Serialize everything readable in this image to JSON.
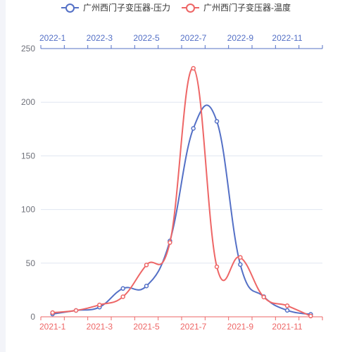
{
  "legend": [
    {
      "label": "广州西门子变压器-压力",
      "color": "#5470c6"
    },
    {
      "label": "广州西门子变压器-温度",
      "color": "#ee6666"
    }
  ],
  "chart_data": {
    "type": "line",
    "smooth": true,
    "grid": true,
    "legend_position": "top-center",
    "ylim": [
      0,
      250
    ],
    "y_ticks": [
      0,
      50,
      100,
      150,
      200,
      250
    ],
    "x_bottom": {
      "categories": [
        "2021-1",
        "2021-2",
        "2021-3",
        "2021-4",
        "2021-5",
        "2021-6",
        "2021-7",
        "2021-8",
        "2021-9",
        "2021-10",
        "2021-11",
        "2021-12"
      ],
      "tick_labels_shown": [
        "2021-1",
        "2021-3",
        "2021-5",
        "2021-7",
        "2021-9",
        "2021-11"
      ],
      "color": "#ee6666"
    },
    "x_top": {
      "categories": [
        "2022-1",
        "2022-2",
        "2022-3",
        "2022-4",
        "2022-5",
        "2022-6",
        "2022-7",
        "2022-8",
        "2022-9",
        "2022-10",
        "2022-11",
        "2022-12"
      ],
      "tick_labels_shown": [
        "2022-1",
        "2022-3",
        "2022-5",
        "2022-7",
        "2022-9",
        "2022-11"
      ],
      "color": "#5470c6"
    },
    "series": [
      {
        "name": "广州西门子变压器-压力",
        "color": "#5470c6",
        "x_axis": "top",
        "values": [
          2.6,
          5.9,
          9.0,
          26.4,
          28.7,
          70.7,
          175.6,
          182.2,
          48.7,
          18.8,
          6.0,
          2.3
        ]
      },
      {
        "name": "广州西门子变压器-温度",
        "color": "#ee6666",
        "x_axis": "bottom",
        "values": [
          3.9,
          5.9,
          11.1,
          18.7,
          48.3,
          69.2,
          231.6,
          46.6,
          55.4,
          18.4,
          10.3,
          0.7
        ]
      }
    ]
  }
}
